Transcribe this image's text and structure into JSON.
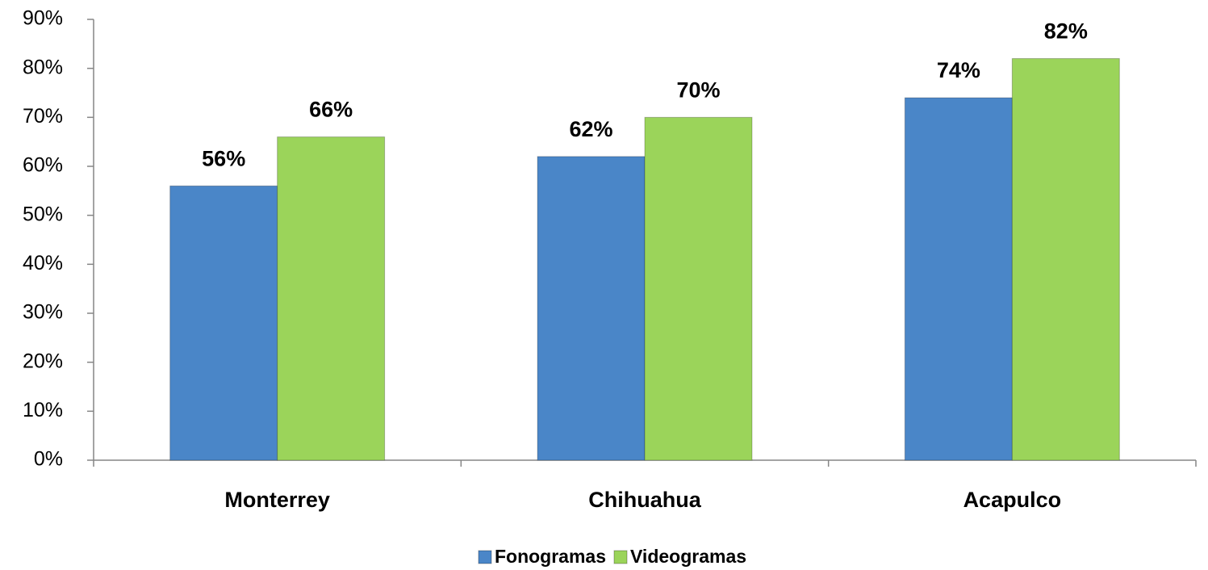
{
  "chart_data": {
    "type": "bar",
    "categories": [
      "Monterrey",
      "Chihuahua",
      "Acapulco"
    ],
    "series": [
      {
        "name": "Fonogramas",
        "color": "#4a86c8",
        "values": [
          56,
          62,
          74
        ],
        "value_labels": [
          "56%",
          "62%",
          "74%"
        ]
      },
      {
        "name": "Videogramas",
        "color": "#9bd45a",
        "values": [
          66,
          70,
          82
        ],
        "value_labels": [
          "66%",
          "70%",
          "82%"
        ]
      }
    ],
    "ylim": [
      0,
      90
    ],
    "yticks": [
      {
        "value": 0,
        "label": "0%"
      },
      {
        "value": 10,
        "label": "10%"
      },
      {
        "value": 20,
        "label": "20%"
      },
      {
        "value": 30,
        "label": "30%"
      },
      {
        "value": 40,
        "label": "40%"
      },
      {
        "value": 50,
        "label": "50%"
      },
      {
        "value": 60,
        "label": "60%"
      },
      {
        "value": 70,
        "label": "70%"
      },
      {
        "value": 80,
        "label": "80%"
      },
      {
        "value": 90,
        "label": "90%"
      }
    ],
    "grid": false,
    "legend": "bottom"
  }
}
